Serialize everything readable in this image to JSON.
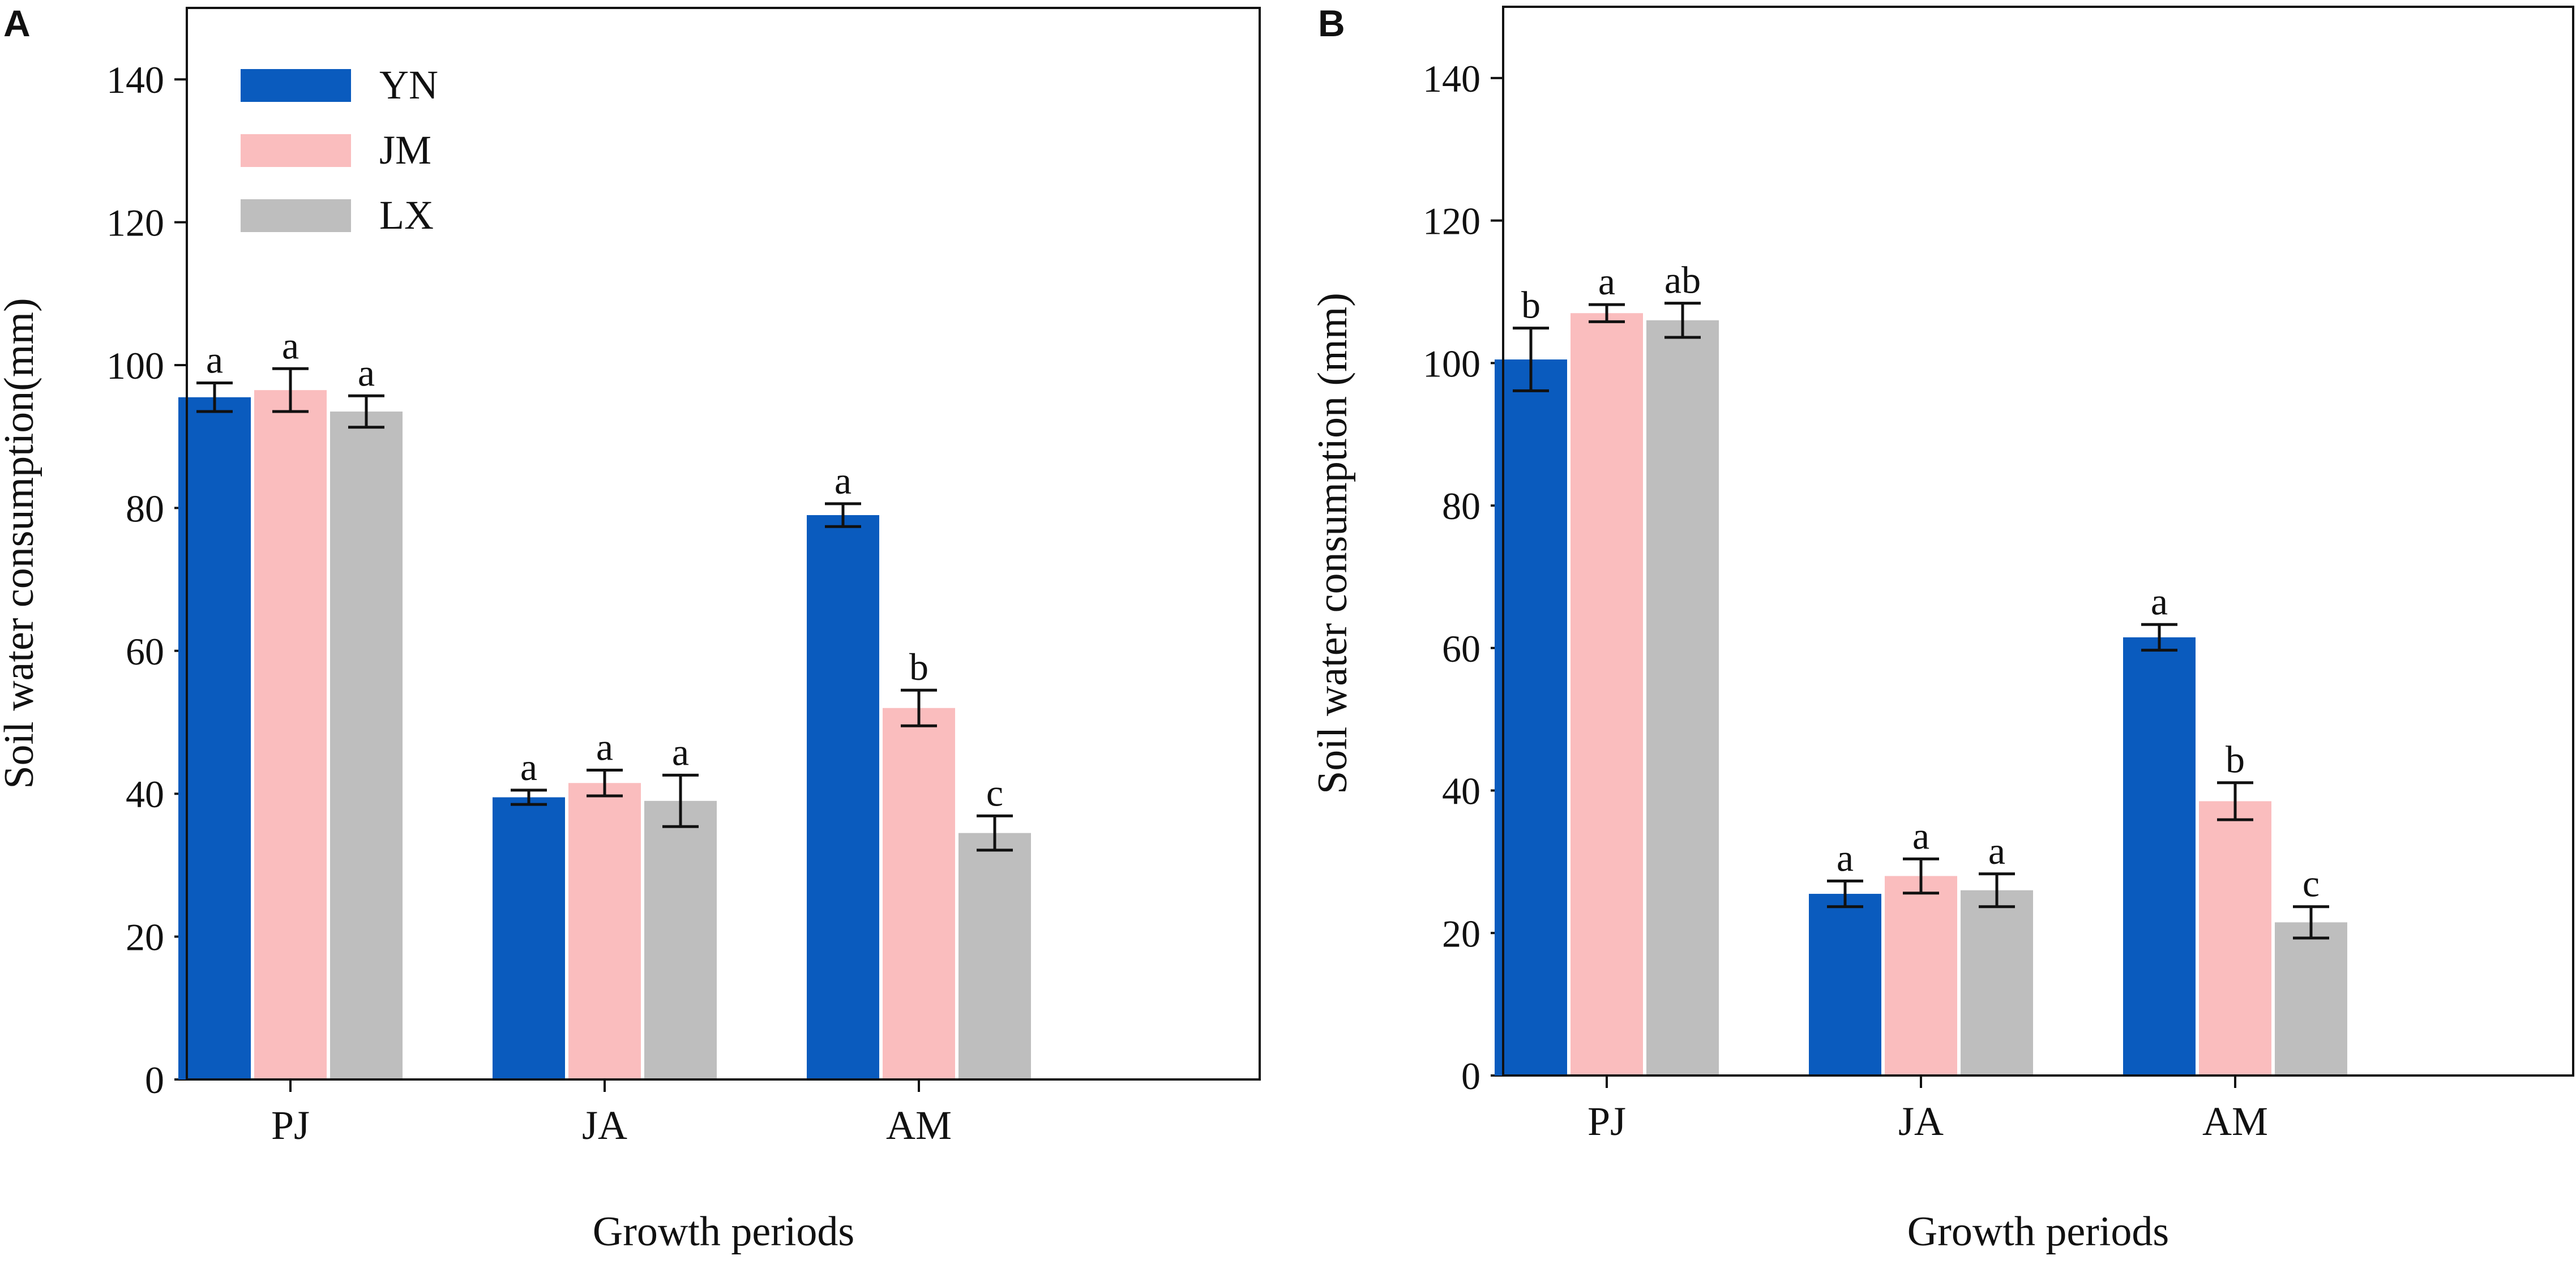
{
  "figure": {
    "panels": [
      "A",
      "B"
    ],
    "colors": {
      "YN": "#0A5BBE",
      "JM": "#FABDBE",
      "LX": "#BEBEBE",
      "axis": "#111111"
    }
  },
  "chart_data": [
    {
      "panel": "A",
      "type": "bar",
      "title": "",
      "xlabel": "Growth periods",
      "ylabel": "Soil water consumption(mm)",
      "ylim": [
        0,
        150
      ],
      "yticks": [
        0,
        20,
        40,
        60,
        80,
        100,
        120,
        140
      ],
      "categories": [
        "PJ",
        "JA",
        "AM"
      ],
      "legend": {
        "placement": "top-left",
        "entries": [
          "YN",
          "JM",
          "LX"
        ]
      },
      "series": [
        {
          "name": "YN",
          "values": [
            95.5,
            39.5,
            79.0
          ],
          "errors": [
            2.0,
            1.0,
            1.6
          ],
          "labels": [
            "a",
            "a",
            "a"
          ]
        },
        {
          "name": "JM",
          "values": [
            96.5,
            41.5,
            52.0
          ],
          "errors": [
            3.0,
            1.8,
            2.5
          ],
          "labels": [
            "a",
            "a",
            "b"
          ]
        },
        {
          "name": "LX",
          "values": [
            93.5,
            39.0,
            34.5
          ],
          "errors": [
            2.2,
            3.6,
            2.4
          ],
          "labels": [
            "a",
            "a",
            "c"
          ]
        }
      ]
    },
    {
      "panel": "B",
      "type": "bar",
      "title": "",
      "xlabel": "Growth periods",
      "ylabel": "Soil water consumption (mm)",
      "ylim": [
        0,
        150
      ],
      "yticks": [
        0,
        20,
        40,
        60,
        80,
        100,
        120,
        140
      ],
      "categories": [
        "PJ",
        "JA",
        "AM"
      ],
      "legend": null,
      "series": [
        {
          "name": "YN",
          "values": [
            100.5,
            25.5,
            61.5
          ],
          "errors": [
            4.4,
            1.8,
            1.8
          ],
          "labels": [
            "b",
            "a",
            "a"
          ]
        },
        {
          "name": "JM",
          "values": [
            107.0,
            28.0,
            38.5
          ],
          "errors": [
            1.2,
            2.4,
            2.6
          ],
          "labels": [
            "a",
            "a",
            "b"
          ]
        },
        {
          "name": "LX",
          "values": [
            106.0,
            26.0,
            21.5
          ],
          "errors": [
            2.4,
            2.3,
            2.2
          ],
          "labels": [
            "ab",
            "a",
            "c"
          ]
        }
      ]
    }
  ]
}
